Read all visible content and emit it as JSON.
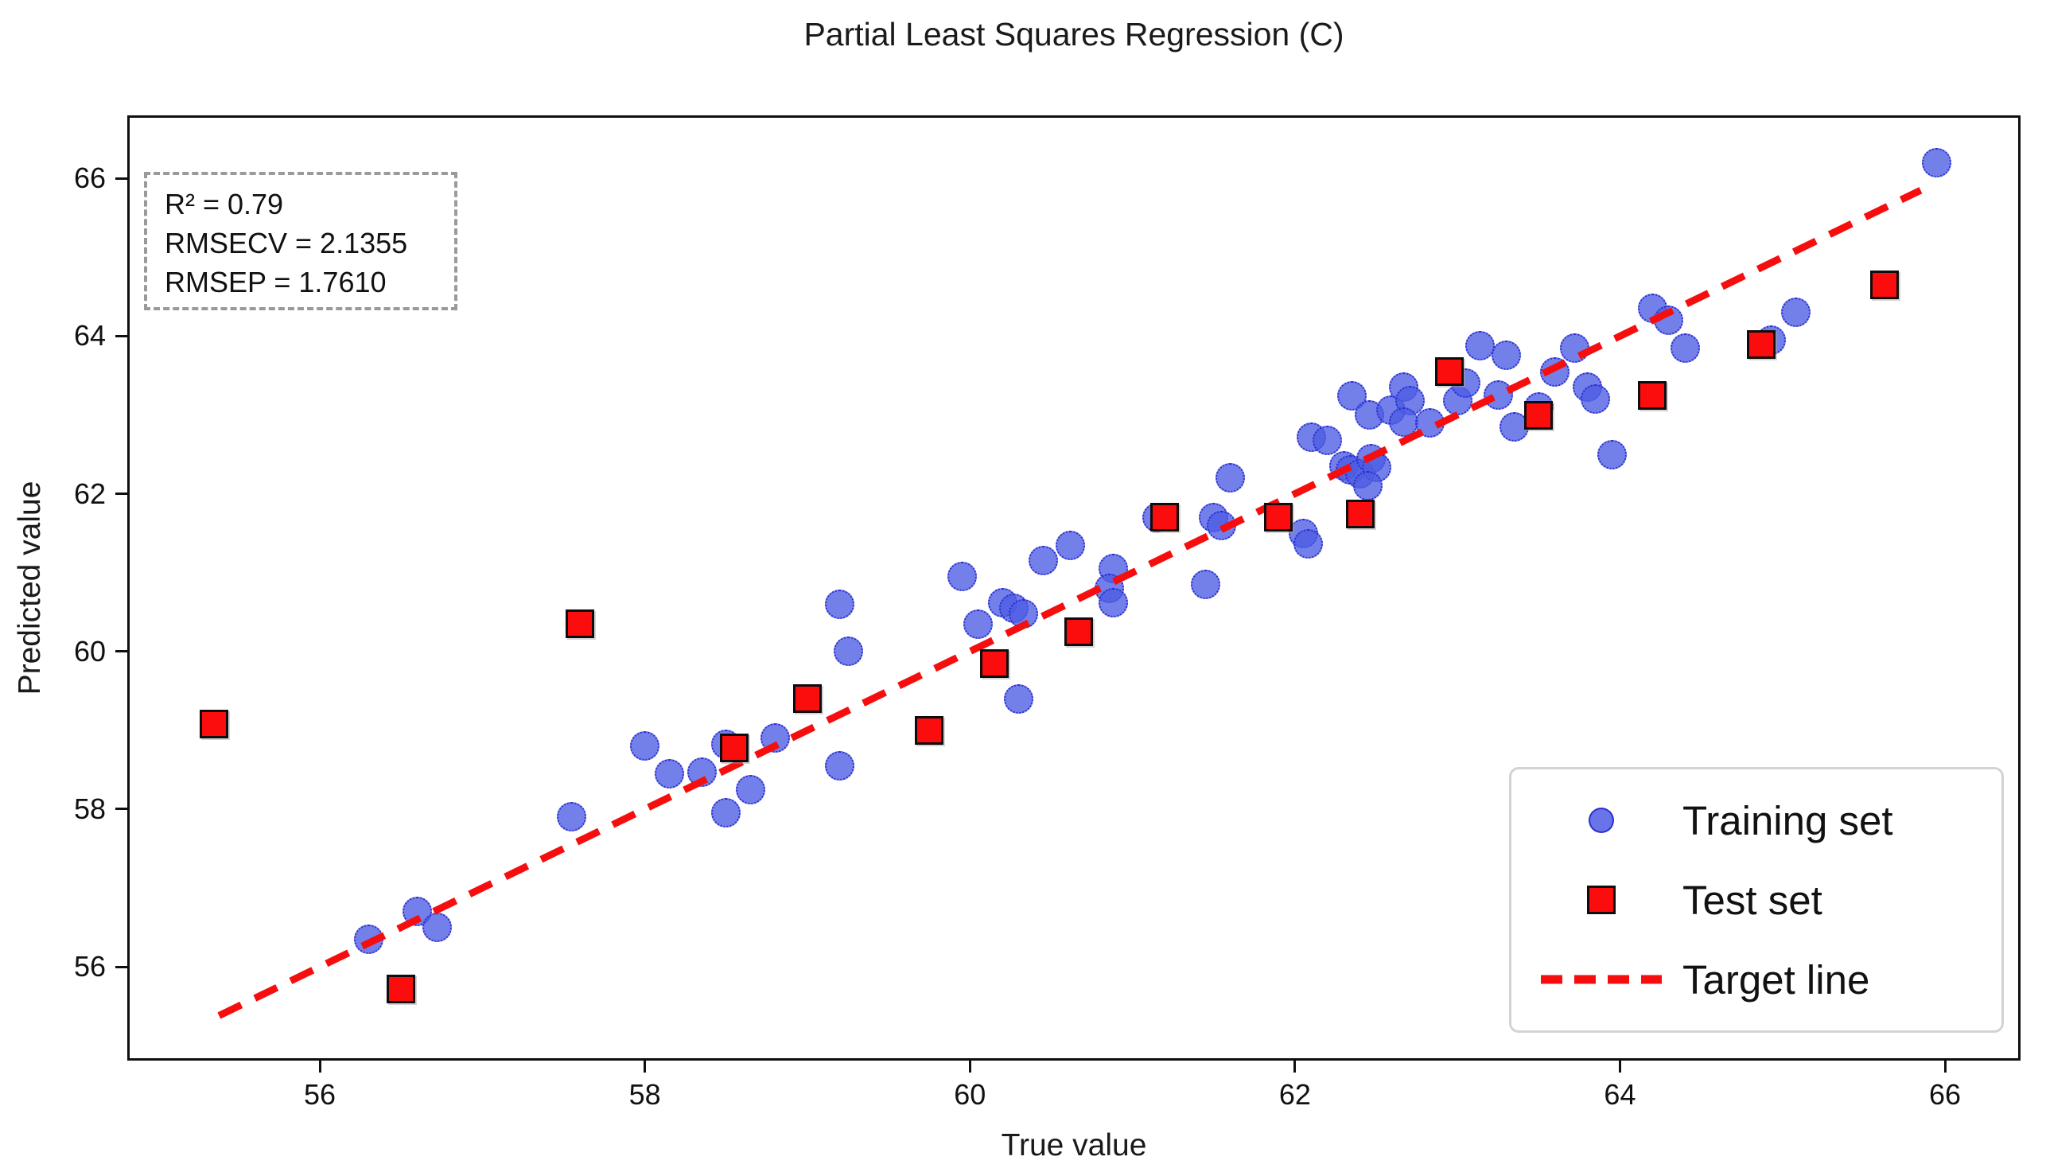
{
  "title": "Partial Least Squares Regression (C)",
  "axes": {
    "xlabel": "True value",
    "ylabel": "Predicted value"
  },
  "stats_box": {
    "lines": [
      "R² = 0.79",
      "RMSECV = 2.1355",
      "RMSEP = 1.7610"
    ]
  },
  "legend": {
    "items": [
      {
        "label": "Training set",
        "marker": "circle"
      },
      {
        "label": "Test set",
        "marker": "square"
      },
      {
        "label": "Target line",
        "marker": "dashed-line"
      }
    ]
  },
  "colors": {
    "training_fill": "#4d5ce3",
    "training_edge": "#2a2ace",
    "test_fill": "#fc0d0d",
    "test_edge": "#0d0d0d",
    "target_line": "#f60e0e",
    "stats_border": "#9a9a9a",
    "legend_border": "#d3d3d3",
    "spine": "#0f0f0f"
  },
  "chart_data": {
    "type": "scatter",
    "title": "Partial Least Squares Regression (C)",
    "xlabel": "True value",
    "ylabel": "Predicted value",
    "xlim": [
      54.83,
      66.45
    ],
    "ylim": [
      54.84,
      66.77
    ],
    "x_ticks": [
      56,
      58,
      60,
      62,
      64,
      66
    ],
    "y_ticks": [
      56,
      58,
      60,
      62,
      64,
      66
    ],
    "grid": false,
    "legend_position": "lower right",
    "annotations": [
      "R² = 0.79",
      "RMSECV = 2.1355",
      "RMSEP = 1.7610"
    ],
    "series": [
      {
        "name": "Training set",
        "marker": "circle",
        "points": [
          [
            56.3,
            56.35
          ],
          [
            56.6,
            56.7
          ],
          [
            56.72,
            56.5
          ],
          [
            57.55,
            57.9
          ],
          [
            58.0,
            58.8
          ],
          [
            58.15,
            58.45
          ],
          [
            58.35,
            58.47
          ],
          [
            58.5,
            58.82
          ],
          [
            58.65,
            58.25
          ],
          [
            58.5,
            57.95
          ],
          [
            58.8,
            58.9
          ],
          [
            59.2,
            58.55
          ],
          [
            59.2,
            60.6
          ],
          [
            59.25,
            60.0
          ],
          [
            59.95,
            60.95
          ],
          [
            60.05,
            60.35
          ],
          [
            60.2,
            60.62
          ],
          [
            60.27,
            60.55
          ],
          [
            60.33,
            60.48
          ],
          [
            60.3,
            59.4
          ],
          [
            60.45,
            61.15
          ],
          [
            60.62,
            61.35
          ],
          [
            60.88,
            61.05
          ],
          [
            60.86,
            60.8
          ],
          [
            60.88,
            60.62
          ],
          [
            61.15,
            61.7
          ],
          [
            61.45,
            60.85
          ],
          [
            61.5,
            61.7
          ],
          [
            61.55,
            61.6
          ],
          [
            61.6,
            62.2
          ],
          [
            62.05,
            61.5
          ],
          [
            62.08,
            61.37
          ],
          [
            62.1,
            62.72
          ],
          [
            62.2,
            62.68
          ],
          [
            62.3,
            62.35
          ],
          [
            62.34,
            62.3
          ],
          [
            62.4,
            62.25
          ],
          [
            62.47,
            62.45
          ],
          [
            62.5,
            62.33
          ],
          [
            62.45,
            62.1
          ],
          [
            62.35,
            63.24
          ],
          [
            62.46,
            63.0
          ],
          [
            62.59,
            63.06
          ],
          [
            62.67,
            63.35
          ],
          [
            62.71,
            63.18
          ],
          [
            62.67,
            62.91
          ],
          [
            62.83,
            62.9
          ],
          [
            63.0,
            63.18
          ],
          [
            63.05,
            63.4
          ],
          [
            63.14,
            63.88
          ],
          [
            63.3,
            63.76
          ],
          [
            63.25,
            63.25
          ],
          [
            63.35,
            62.85
          ],
          [
            63.5,
            63.1
          ],
          [
            63.6,
            63.55
          ],
          [
            63.72,
            63.85
          ],
          [
            63.8,
            63.35
          ],
          [
            63.85,
            63.2
          ],
          [
            63.95,
            62.5
          ],
          [
            64.2,
            64.35
          ],
          [
            64.3,
            64.2
          ],
          [
            64.4,
            63.85
          ],
          [
            64.93,
            63.95
          ],
          [
            65.08,
            64.3
          ],
          [
            65.95,
            66.2
          ]
        ]
      },
      {
        "name": "Test set",
        "marker": "square",
        "points": [
          [
            55.35,
            59.08
          ],
          [
            56.5,
            55.72
          ],
          [
            57.6,
            60.35
          ],
          [
            58.55,
            58.78
          ],
          [
            59.0,
            59.4
          ],
          [
            59.75,
            59.0
          ],
          [
            60.15,
            59.85
          ],
          [
            60.67,
            60.25
          ],
          [
            61.2,
            61.7
          ],
          [
            61.9,
            61.7
          ],
          [
            62.4,
            61.74
          ],
          [
            62.95,
            63.55
          ],
          [
            63.5,
            63.0
          ],
          [
            64.2,
            63.25
          ],
          [
            64.87,
            63.89
          ],
          [
            65.63,
            64.65
          ]
        ]
      }
    ],
    "target_line": {
      "name": "Target line",
      "style": "dashed",
      "x": [
        55.38,
        65.85
      ],
      "y": [
        55.38,
        65.85
      ]
    }
  }
}
